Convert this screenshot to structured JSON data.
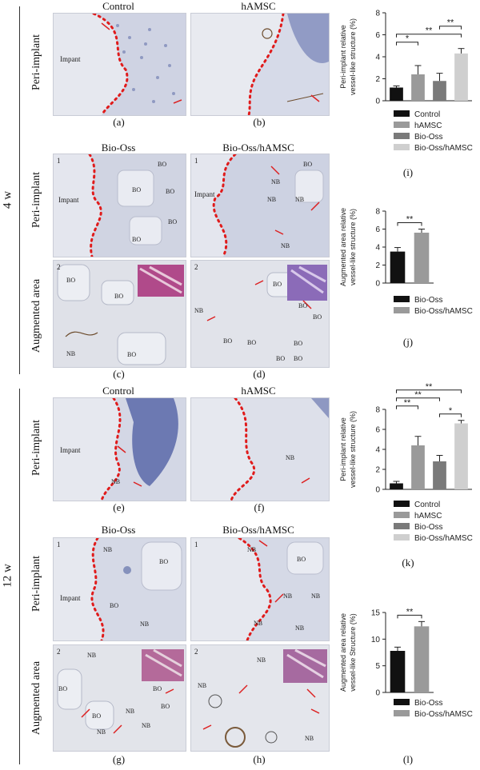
{
  "figure": {
    "time_4w": "4 w",
    "time_12w": "12 w",
    "row_peri": "Peri-implant",
    "row_aug": "Augmented area",
    "col_control": "Control",
    "col_hamsc": "hAMSC",
    "col_biooss": "Bio-Oss",
    "col_biooss_hamsc": "Bio-Oss/hAMSC",
    "panel_letters": [
      "(a)",
      "(b)",
      "(c)",
      "(d)",
      "(e)",
      "(f)",
      "(g)",
      "(h)",
      "(i)",
      "(j)",
      "(k)",
      "(l)"
    ],
    "tissue_labels": {
      "impant": "Impant",
      "bo": "BO",
      "nb": "NB",
      "one": "1",
      "two": "2"
    }
  },
  "chart_data": [
    {
      "id": "i",
      "type": "bar",
      "categories": [
        "Control",
        "hAMSC",
        "Bio-Oss",
        "Bio-Oss/hAMSC"
      ],
      "values": [
        1.2,
        2.4,
        1.8,
        4.3
      ],
      "errors": [
        0.15,
        0.8,
        0.7,
        0.45
      ],
      "colors": [
        "#111111",
        "#9a9a9a",
        "#7a7a7a",
        "#cfcfcf"
      ],
      "ylabel": "Peri-implant relative\nvessel-like structure (%)",
      "ylim": [
        0,
        8
      ],
      "yticks": [
        0,
        2,
        4,
        6,
        8
      ],
      "significance": [
        {
          "from": 0,
          "to": 1,
          "label": "*"
        },
        {
          "from": 0,
          "to": 3,
          "label": "**"
        },
        {
          "from": 2,
          "to": 3,
          "label": "**"
        }
      ],
      "legend": [
        "Control",
        "hAMSC",
        "Bio-Oss",
        "Bio-Oss/hAMSC"
      ]
    },
    {
      "id": "j",
      "type": "bar",
      "categories": [
        "Bio-Oss",
        "Bio-Oss/hAMSC"
      ],
      "values": [
        3.5,
        5.6
      ],
      "errors": [
        0.45,
        0.4
      ],
      "colors": [
        "#111111",
        "#9a9a9a"
      ],
      "ylabel": "Augmented area relative\nvessel-like structure (%)",
      "ylim": [
        0,
        8
      ],
      "yticks": [
        0,
        2,
        4,
        6,
        8
      ],
      "significance": [
        {
          "from": 0,
          "to": 1,
          "label": "**"
        }
      ],
      "legend": [
        "Bio-Oss",
        "Bio-Oss/hAMSC"
      ]
    },
    {
      "id": "k",
      "type": "bar",
      "categories": [
        "Control",
        "hAMSC",
        "Bio-Oss",
        "Bio-Oss/hAMSC"
      ],
      "values": [
        0.6,
        4.4,
        2.8,
        6.6
      ],
      "errors": [
        0.2,
        0.9,
        0.6,
        0.3
      ],
      "colors": [
        "#111111",
        "#9a9a9a",
        "#7a7a7a",
        "#cfcfcf"
      ],
      "ylabel": "Peri-implant relative\nvessel-like structure (%)",
      "ylim": [
        0,
        8
      ],
      "yticks": [
        0,
        2,
        4,
        6,
        8
      ],
      "significance": [
        {
          "from": 2,
          "to": 3,
          "label": "*"
        },
        {
          "from": 0,
          "to": 1,
          "label": "**"
        },
        {
          "from": 0,
          "to": 2,
          "label": "**"
        },
        {
          "from": 0,
          "to": 3,
          "label": "**"
        }
      ],
      "legend": [
        "Control",
        "hAMSC",
        "Bio-Oss",
        "Bio-Oss/hAMSC"
      ]
    },
    {
      "id": "l",
      "type": "bar",
      "categories": [
        "Bio-Oss",
        "Bio-Oss/hAMSC"
      ],
      "values": [
        7.8,
        12.4
      ],
      "errors": [
        0.7,
        0.9
      ],
      "colors": [
        "#111111",
        "#9a9a9a"
      ],
      "ylabel": "Augmented area relative\nvessel-like Structure (%)",
      "ylim": [
        0,
        15
      ],
      "yticks": [
        0,
        5,
        10,
        15
      ],
      "significance": [
        {
          "from": 0,
          "to": 1,
          "label": "**"
        }
      ],
      "legend": [
        "Bio-Oss",
        "Bio-Oss/hAMSC"
      ]
    }
  ]
}
